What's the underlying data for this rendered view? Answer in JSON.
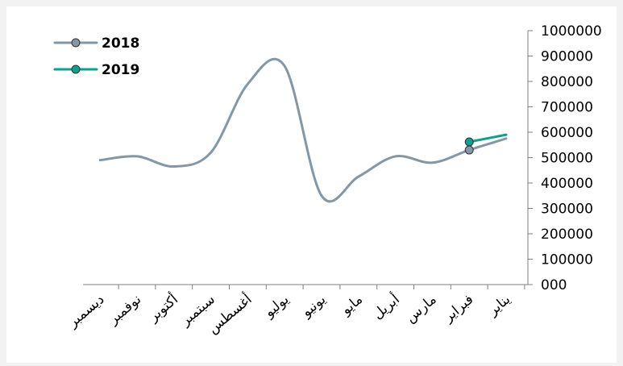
{
  "chart_data": {
    "type": "line",
    "categories": [
      "يناير",
      "فبراير",
      "مارس",
      "أبريل",
      "مايو",
      "يونيو",
      "يوليو",
      "أغسطس",
      "سبتمبر",
      "أكتوبر",
      "نوفمبر",
      "ديسمبر"
    ],
    "series": [
      {
        "name": "2018",
        "color": "#8397a4",
        "values": [
          575000,
          530000,
          480000,
          505000,
          425000,
          350000,
          860000,
          790000,
          520000,
          465000,
          505000,
          490000
        ]
      },
      {
        "name": "2019",
        "color": "#0aa28f",
        "values": [
          590000,
          562000,
          null,
          null,
          null,
          null,
          null,
          null,
          null,
          null,
          null,
          null
        ]
      }
    ],
    "ylim": [
      0,
      1000000
    ],
    "yticks": [
      "000",
      "100000",
      "200000",
      "300000",
      "400000",
      "500000",
      "600000",
      "700000",
      "800000",
      "900000",
      "1000000"
    ],
    "xaxis_direction": "right-to-left",
    "yaxis_position": "right",
    "legend_position": "top-left",
    "grid": false,
    "title": "",
    "xlabel": "",
    "ylabel": ""
  }
}
